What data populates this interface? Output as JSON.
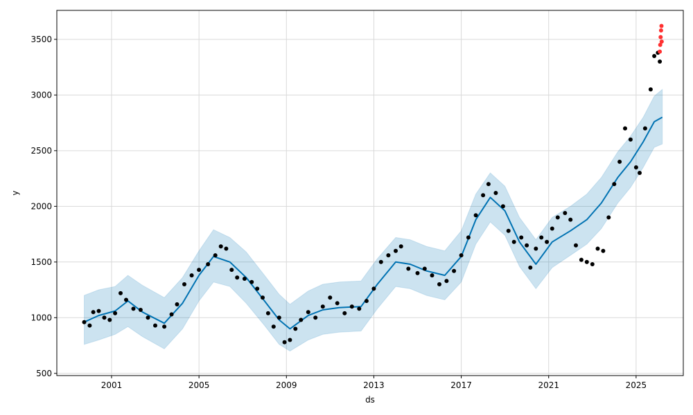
{
  "chart_data": {
    "type": "scatter",
    "title": "",
    "xlabel": "ds",
    "ylabel": "y",
    "xlim": [
      "1998-07-01",
      "2027-03-01"
    ],
    "ylim": [
      480,
      3760
    ],
    "x_ticks": [
      "2001",
      "2005",
      "2009",
      "2013",
      "2017",
      "2021",
      "2025"
    ],
    "y_ticks": [
      "500",
      "1000",
      "1500",
      "2000",
      "2500",
      "3000",
      "3500"
    ],
    "grid": true,
    "legend": "none",
    "colors": {
      "observed": "#000000",
      "forecast_line": "#0072B2",
      "uncertainty": "#0072B2",
      "highlighted": "#ff3030",
      "grid": "#d9d9d9"
    },
    "series": [
      {
        "role": "observed",
        "points": [
          [
            "1999-10-01",
            960
          ],
          [
            "2000-01-01",
            930
          ],
          [
            "2000-03-01",
            1050
          ],
          [
            "2000-06-01",
            1060
          ],
          [
            "2000-09-01",
            1000
          ],
          [
            "2000-12-01",
            980
          ],
          [
            "2001-03-01",
            1040
          ],
          [
            "2001-06-01",
            1220
          ],
          [
            "2001-09-01",
            1160
          ],
          [
            "2002-01-01",
            1080
          ],
          [
            "2002-05-01",
            1070
          ],
          [
            "2002-09-01",
            1000
          ],
          [
            "2003-01-01",
            930
          ],
          [
            "2003-06-01",
            920
          ],
          [
            "2003-10-01",
            1030
          ],
          [
            "2004-01-01",
            1120
          ],
          [
            "2004-05-01",
            1300
          ],
          [
            "2004-09-01",
            1380
          ],
          [
            "2005-01-01",
            1430
          ],
          [
            "2005-06-01",
            1480
          ],
          [
            "2005-10-01",
            1560
          ],
          [
            "2006-01-01",
            1640
          ],
          [
            "2006-04-01",
            1620
          ],
          [
            "2006-07-01",
            1430
          ],
          [
            "2006-10-01",
            1360
          ],
          [
            "2007-02-01",
            1350
          ],
          [
            "2007-06-01",
            1320
          ],
          [
            "2007-09-01",
            1260
          ],
          [
            "2007-12-01",
            1180
          ],
          [
            "2008-03-01",
            1040
          ],
          [
            "2008-06-01",
            920
          ],
          [
            "2008-09-01",
            1000
          ],
          [
            "2008-12-01",
            780
          ],
          [
            "2009-03-01",
            800
          ],
          [
            "2009-06-01",
            900
          ],
          [
            "2009-09-01",
            980
          ],
          [
            "2010-01-01",
            1050
          ],
          [
            "2010-05-01",
            1000
          ],
          [
            "2010-09-01",
            1100
          ],
          [
            "2011-01-01",
            1180
          ],
          [
            "2011-05-01",
            1130
          ],
          [
            "2011-09-01",
            1040
          ],
          [
            "2012-01-01",
            1100
          ],
          [
            "2012-05-01",
            1080
          ],
          [
            "2012-09-01",
            1150
          ],
          [
            "2013-01-01",
            1260
          ],
          [
            "2013-05-01",
            1500
          ],
          [
            "2013-09-01",
            1560
          ],
          [
            "2014-01-01",
            1600
          ],
          [
            "2014-04-01",
            1640
          ],
          [
            "2014-08-01",
            1440
          ],
          [
            "2015-01-01",
            1400
          ],
          [
            "2015-05-01",
            1440
          ],
          [
            "2015-09-01",
            1380
          ],
          [
            "2016-01-01",
            1300
          ],
          [
            "2016-05-01",
            1330
          ],
          [
            "2016-09-01",
            1420
          ],
          [
            "2017-01-01",
            1560
          ],
          [
            "2017-05-01",
            1720
          ],
          [
            "2017-09-01",
            1920
          ],
          [
            "2018-01-01",
            2100
          ],
          [
            "2018-04-01",
            2200
          ],
          [
            "2018-08-01",
            2120
          ],
          [
            "2018-12-01",
            2000
          ],
          [
            "2019-03-01",
            1780
          ],
          [
            "2019-06-01",
            1680
          ],
          [
            "2019-10-01",
            1720
          ],
          [
            "2020-01-01",
            1650
          ],
          [
            "2020-03-01",
            1450
          ],
          [
            "2020-06-01",
            1620
          ],
          [
            "2020-09-01",
            1720
          ],
          [
            "2020-12-01",
            1680
          ],
          [
            "2021-03-01",
            1800
          ],
          [
            "2021-06-01",
            1900
          ],
          [
            "2021-10-01",
            1940
          ],
          [
            "2022-01-01",
            1880
          ],
          [
            "2022-04-01",
            1650
          ],
          [
            "2022-07-01",
            1520
          ],
          [
            "2022-10-01",
            1500
          ],
          [
            "2023-01-01",
            1480
          ],
          [
            "2023-04-01",
            1620
          ],
          [
            "2023-07-01",
            1600
          ],
          [
            "2023-10-01",
            1900
          ],
          [
            "2024-01-01",
            2200
          ],
          [
            "2024-04-01",
            2400
          ],
          [
            "2024-07-01",
            2700
          ],
          [
            "2024-10-01",
            2600
          ],
          [
            "2025-01-01",
            2350
          ],
          [
            "2025-03-01",
            2300
          ],
          [
            "2025-06-01",
            2700
          ],
          [
            "2025-09-01",
            3050
          ],
          [
            "2025-11-01",
            3350
          ],
          [
            "2026-01-01",
            3380
          ],
          [
            "2026-02-01",
            3300
          ]
        ]
      },
      {
        "role": "highlighted",
        "points": [
          [
            "2026-02-01",
            3390
          ],
          [
            "2026-02-08",
            3450
          ],
          [
            "2026-02-15",
            3520
          ],
          [
            "2026-02-22",
            3580
          ],
          [
            "2026-03-01",
            3620
          ],
          [
            "2026-03-05",
            3480
          ]
        ]
      },
      {
        "role": "forecast",
        "points": [
          [
            "1999-10-01",
            960,
            760,
            1200
          ],
          [
            "2000-06-01",
            1020,
            800,
            1250
          ],
          [
            "2001-03-01",
            1060,
            850,
            1280
          ],
          [
            "2001-10-01",
            1150,
            920,
            1380
          ],
          [
            "2002-06-01",
            1050,
            830,
            1290
          ],
          [
            "2003-06-01",
            950,
            720,
            1180
          ],
          [
            "2004-04-01",
            1130,
            900,
            1360
          ],
          [
            "2005-01-01",
            1380,
            1150,
            1600
          ],
          [
            "2005-09-01",
            1550,
            1320,
            1790
          ],
          [
            "2006-06-01",
            1500,
            1280,
            1720
          ],
          [
            "2007-03-01",
            1360,
            1130,
            1590
          ],
          [
            "2008-01-01",
            1150,
            930,
            1380
          ],
          [
            "2008-09-01",
            980,
            760,
            1210
          ],
          [
            "2009-03-01",
            900,
            700,
            1120
          ],
          [
            "2010-01-01",
            1020,
            800,
            1240
          ],
          [
            "2010-09-01",
            1070,
            850,
            1300
          ],
          [
            "2011-06-01",
            1090,
            870,
            1320
          ],
          [
            "2012-06-01",
            1100,
            880,
            1330
          ],
          [
            "2013-03-01",
            1300,
            1080,
            1530
          ],
          [
            "2014-01-01",
            1500,
            1280,
            1720
          ],
          [
            "2014-09-01",
            1480,
            1260,
            1700
          ],
          [
            "2015-06-01",
            1420,
            1200,
            1640
          ],
          [
            "2016-04-01",
            1380,
            1160,
            1600
          ],
          [
            "2017-01-01",
            1550,
            1320,
            1780
          ],
          [
            "2017-09-01",
            1880,
            1660,
            2110
          ],
          [
            "2018-05-01",
            2080,
            1860,
            2300
          ],
          [
            "2019-01-01",
            1960,
            1740,
            2180
          ],
          [
            "2019-09-01",
            1680,
            1460,
            1900
          ],
          [
            "2020-06-01",
            1480,
            1260,
            1700
          ],
          [
            "2021-03-01",
            1680,
            1450,
            1900
          ],
          [
            "2022-01-01",
            1780,
            1560,
            2000
          ],
          [
            "2022-10-01",
            1880,
            1660,
            2110
          ],
          [
            "2023-06-01",
            2030,
            1800,
            2260
          ],
          [
            "2024-03-01",
            2260,
            2030,
            2490
          ],
          [
            "2024-10-01",
            2400,
            2170,
            2630
          ],
          [
            "2025-05-01",
            2580,
            2350,
            2800
          ],
          [
            "2025-11-01",
            2760,
            2530,
            2990
          ],
          [
            "2026-03-15",
            2800,
            2560,
            3050
          ]
        ]
      }
    ]
  }
}
